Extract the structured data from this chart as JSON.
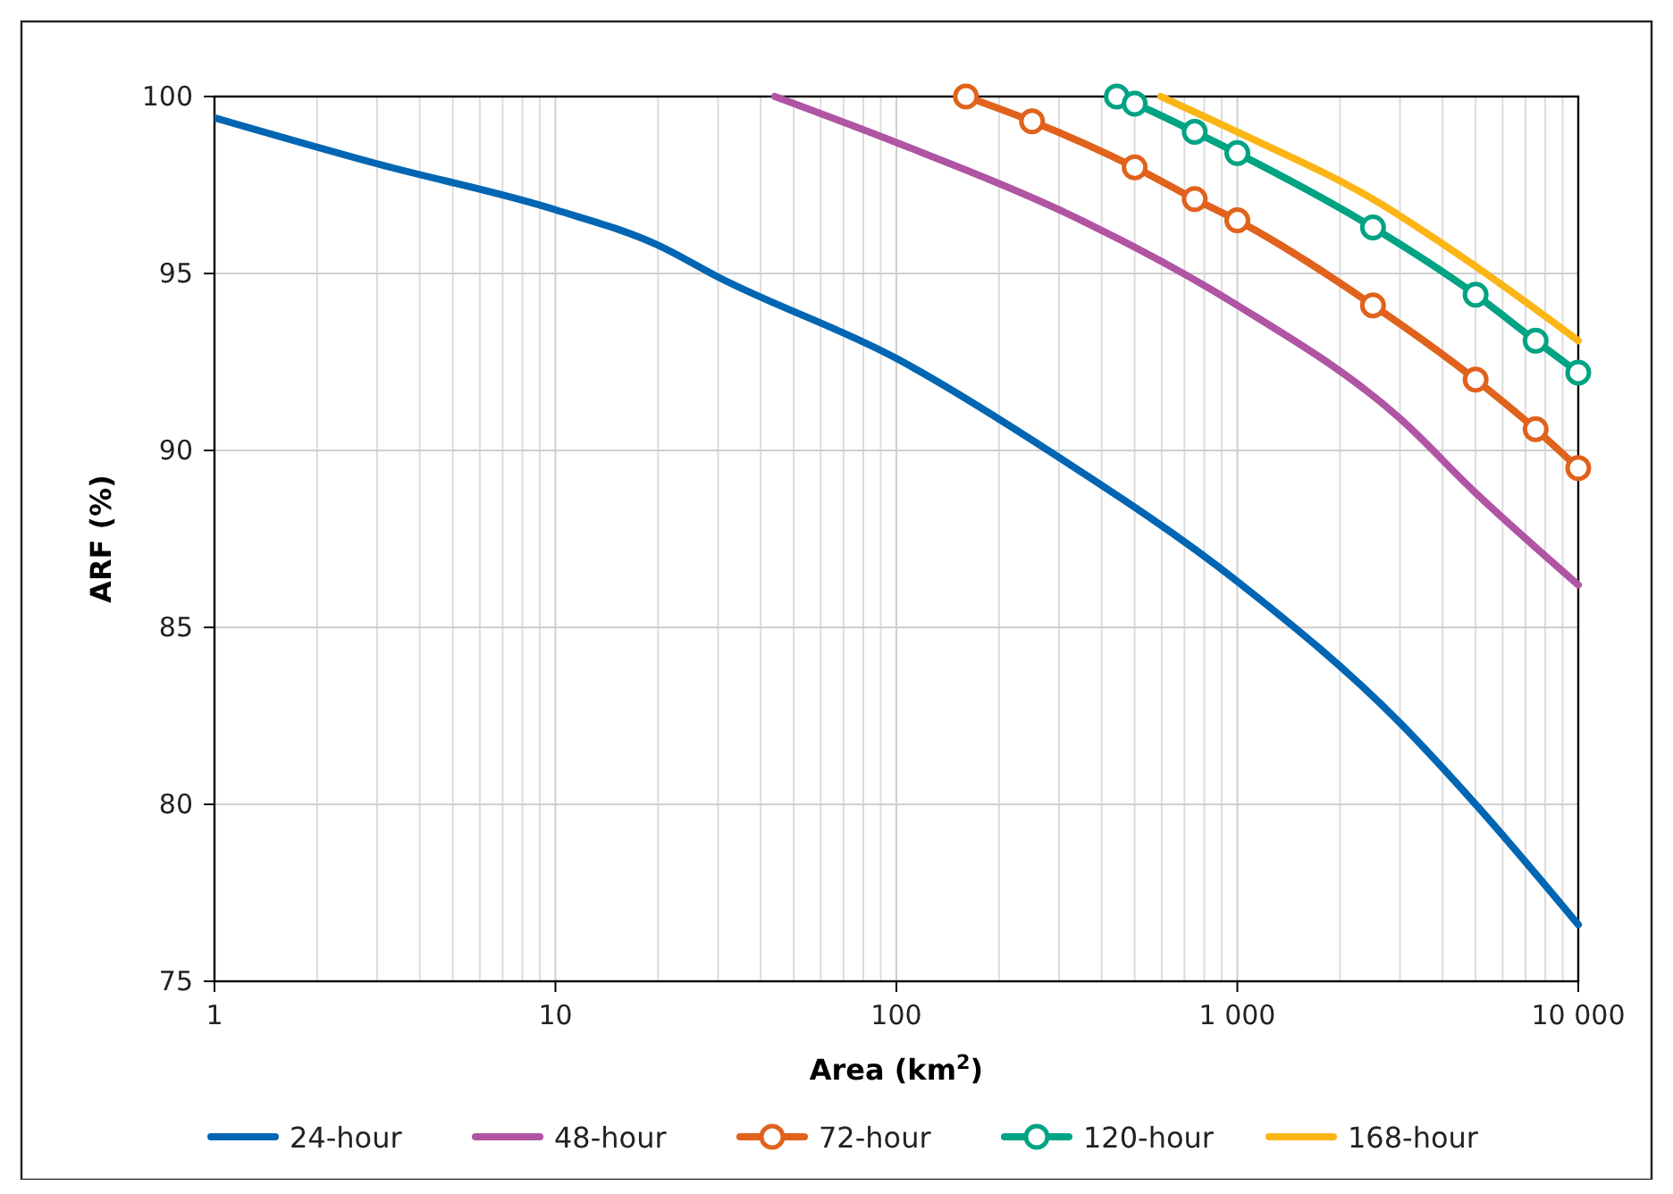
{
  "chart_data": {
    "type": "line",
    "xlabel": "Area (km$^{2}$)",
    "ylabel": "ARF (%)",
    "log": "x",
    "grid": true,
    "legend": "bottom",
    "line_style": "solid",
    "xlim": [
      1,
      10000
    ],
    "xticks": [
      1,
      10,
      100,
      {
        "value": 1000,
        "label": "1 000"
      },
      {
        "value": 10000,
        "label": "10 000"
      }
    ],
    "ylim": [
      75,
      100
    ],
    "yticks": [
      75,
      80,
      85,
      90,
      95,
      100
    ],
    "series": [
      {
        "name": "24-hour",
        "color": "#0066b3",
        "marker": "none",
        "x": [
          1,
          3,
          10,
          20,
          30,
          100,
          300,
          1000,
          3000,
          5000,
          10000
        ],
        "values": [
          99.4,
          98.1,
          96.8,
          95.8,
          94.9,
          92.6,
          89.8,
          86.3,
          82.3,
          80.0,
          76.6
        ]
      },
      {
        "name": "48-hour",
        "color": "#b054a4",
        "marker": "none",
        "x": [
          44,
          100,
          300,
          1000,
          3000,
          5000,
          10000
        ],
        "values": [
          100,
          98.7,
          96.8,
          94.1,
          90.9,
          88.8,
          86.2
        ]
      },
      {
        "name": "72-hour",
        "color": "#e0621c",
        "marker": "circle",
        "x": [
          160,
          250,
          500,
          750,
          1000,
          2500,
          5000,
          7500,
          10000
        ],
        "values": [
          100,
          99.3,
          98.0,
          97.1,
          96.5,
          94.1,
          92.0,
          90.6,
          89.5
        ]
      },
      {
        "name": "120-hour",
        "color": "#00a383",
        "marker": "circle",
        "x": [
          443,
          500,
          750,
          1000,
          2500,
          5000,
          7500,
          10000
        ],
        "values": [
          100,
          99.8,
          99.0,
          98.4,
          96.3,
          94.4,
          93.1,
          92.2
        ]
      },
      {
        "name": "168-hour",
        "color": "#fbb515",
        "marker": "none",
        "x": [
          597,
          1000,
          2500,
          5000,
          10000
        ],
        "values": [
          100,
          99.0,
          97.1,
          95.2,
          93.1
        ]
      }
    ]
  }
}
